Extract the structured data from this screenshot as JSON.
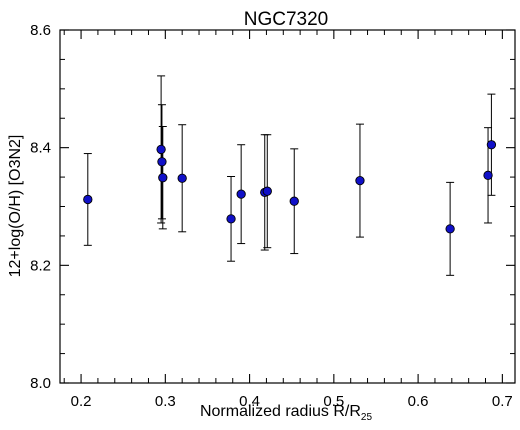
{
  "chart_data": {
    "type": "scatter",
    "title": "NGC7320",
    "xlabel": "Normalized radius R/R",
    "xlabel_subscript": "25",
    "ylabel": "12+log(O/H) [O3N2]",
    "xlim": [
      0.175,
      0.715
    ],
    "ylim": [
      8.0,
      8.6
    ],
    "x_ticks": [
      0.2,
      0.3,
      0.4,
      0.5,
      0.6,
      0.7
    ],
    "y_ticks": [
      8.0,
      8.2,
      8.4,
      8.6
    ],
    "x_tick_labels": [
      "0.2",
      "0.3",
      "0.4",
      "0.5",
      "0.6",
      "0.7"
    ],
    "y_tick_labels": [
      "8.0",
      "8.2",
      "8.4",
      "8.6"
    ],
    "grid": false,
    "marker_color": "#1010c8",
    "points": [
      {
        "x": 0.208,
        "y": 8.312,
        "err": 0.078
      },
      {
        "x": 0.295,
        "y": 8.397,
        "err": 0.125
      },
      {
        "x": 0.296,
        "y": 8.376,
        "err": 0.097
      },
      {
        "x": 0.297,
        "y": 8.349,
        "err": 0.087
      },
      {
        "x": 0.32,
        "y": 8.348,
        "err": 0.091
      },
      {
        "x": 0.378,
        "y": 8.279,
        "err": 0.072
      },
      {
        "x": 0.39,
        "y": 8.321,
        "err": 0.084
      },
      {
        "x": 0.418,
        "y": 8.324,
        "err": 0.098
      },
      {
        "x": 0.421,
        "y": 8.326,
        "err": 0.096
      },
      {
        "x": 0.453,
        "y": 8.309,
        "err": 0.089
      },
      {
        "x": 0.531,
        "y": 8.344,
        "err": 0.096
      },
      {
        "x": 0.638,
        "y": 8.262,
        "err": 0.079
      },
      {
        "x": 0.683,
        "y": 8.353,
        "err": 0.081
      },
      {
        "x": 0.687,
        "y": 8.405,
        "err": 0.086
      }
    ]
  }
}
